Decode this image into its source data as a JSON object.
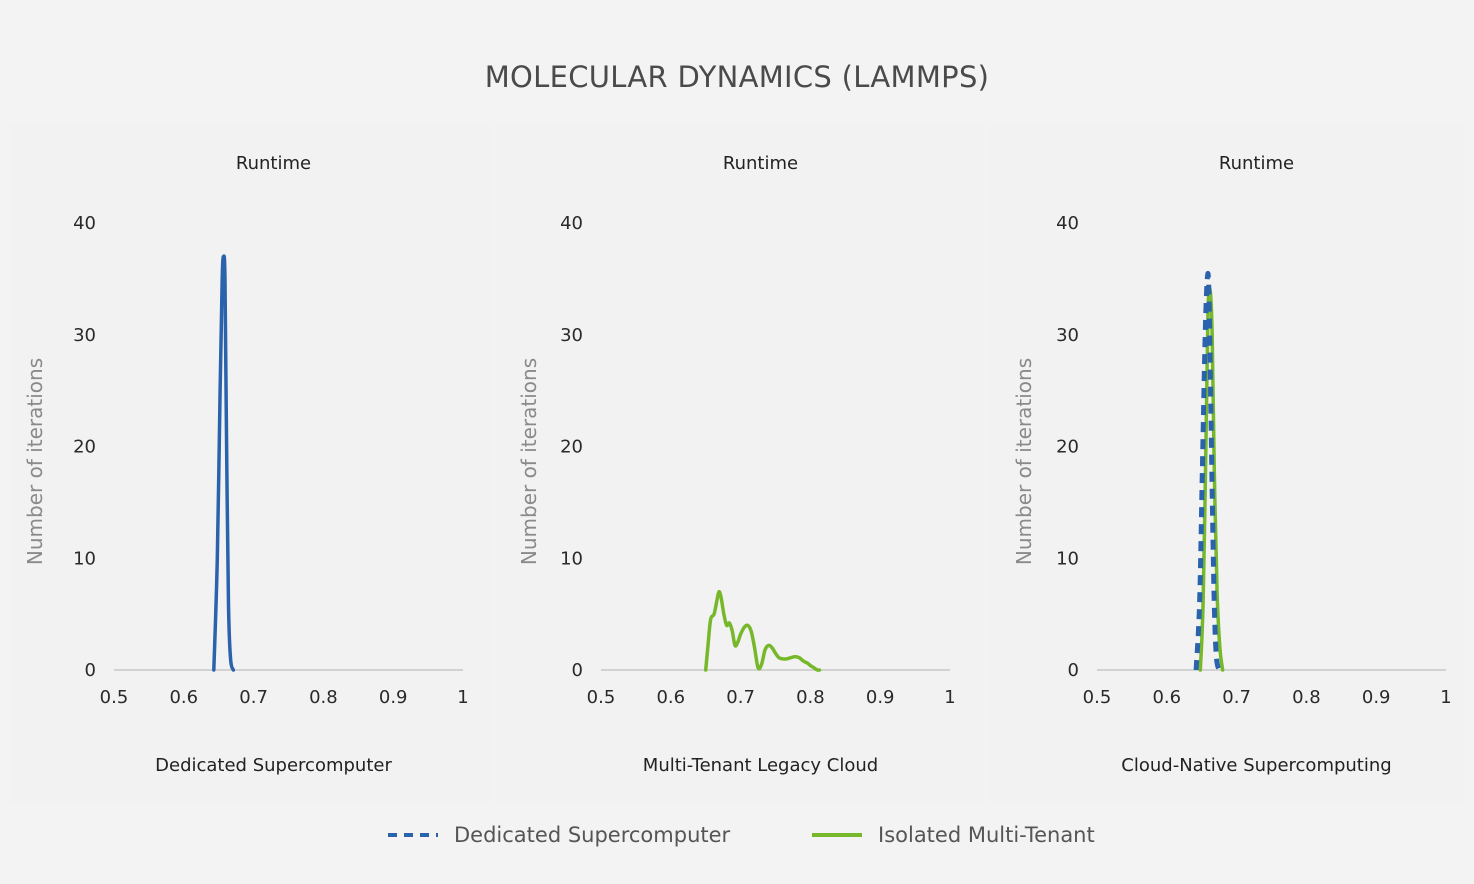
{
  "title": "MOLECULAR DYNAMICS (LAMMPS)",
  "legend": [
    {
      "label": "Dedicated Supercomputer",
      "color": "#2a62ac",
      "dash": true
    },
    {
      "label": "Isolated Multi-Tenant",
      "color": "#76b82a",
      "dash": false
    }
  ],
  "chart_data": [
    {
      "type": "line",
      "title": "Runtime",
      "xlabel": "Dedicated Supercomputer",
      "ylabel": "Number of iterations",
      "xlim": [
        0.5,
        1
      ],
      "ylim": [
        0,
        40
      ],
      "xticks": [
        "0.5",
        "0.6",
        "0.7",
        "0.8",
        "0.9",
        "1"
      ],
      "yticks": [
        "0",
        "10",
        "20",
        "30",
        "40"
      ],
      "grid": false,
      "series": [
        {
          "color": "#2a62ac",
          "dashed": false,
          "x": [
            0.643,
            0.648,
            0.652,
            0.655,
            0.657,
            0.659,
            0.661,
            0.664,
            0.667,
            0.671
          ],
          "y": [
            0,
            10,
            25,
            35,
            37,
            35,
            22,
            6,
            1,
            0
          ]
        }
      ]
    },
    {
      "type": "line",
      "title": "Runtime",
      "xlabel": "Multi-Tenant Legacy Cloud",
      "ylabel": "Number of iterations",
      "xlim": [
        0.5,
        1
      ],
      "ylim": [
        0,
        40
      ],
      "xticks": [
        "0.5",
        "0.6",
        "0.7",
        "0.8",
        "0.9",
        "1"
      ],
      "yticks": [
        "0",
        "10",
        "20",
        "30",
        "40"
      ],
      "grid": false,
      "series": [
        {
          "color": "#76b82a",
          "dashed": false,
          "x": [
            0.65,
            0.653,
            0.657,
            0.662,
            0.666,
            0.669,
            0.672,
            0.676,
            0.68,
            0.684,
            0.688,
            0.692,
            0.696,
            0.7,
            0.705,
            0.71,
            0.715,
            0.72,
            0.725,
            0.73,
            0.735,
            0.74,
            0.745,
            0.75,
            0.755,
            0.76,
            0.766,
            0.772,
            0.778,
            0.784,
            0.79,
            0.796,
            0.8,
            0.805,
            0.81,
            0.813
          ],
          "y": [
            0,
            2,
            4.5,
            5,
            6.2,
            7,
            6.5,
            5,
            4,
            4.2,
            3.5,
            2.2,
            2.5,
            3.2,
            3.8,
            4,
            3.5,
            2,
            0.2,
            0.5,
            1.8,
            2.2,
            2,
            1.5,
            1.1,
            1,
            1,
            1.1,
            1.2,
            1.1,
            0.8,
            0.6,
            0.4,
            0.2,
            0,
            0
          ]
        }
      ]
    },
    {
      "type": "line",
      "title": "Runtime",
      "xlabel": "Cloud-Native Supercomputing",
      "ylabel": "Number of iterations",
      "xlim": [
        0.5,
        1
      ],
      "ylim": [
        0,
        40
      ],
      "xticks": [
        "0.5",
        "0.6",
        "0.7",
        "0.8",
        "0.9",
        "1"
      ],
      "yticks": [
        "0",
        "10",
        "20",
        "30",
        "40"
      ],
      "grid": false,
      "series": [
        {
          "name": "Isolated Multi-Tenant",
          "color": "#76b82a",
          "dashed": false,
          "x": [
            0.648,
            0.652,
            0.656,
            0.659,
            0.662,
            0.665,
            0.668,
            0.672,
            0.676,
            0.68
          ],
          "y": [
            0,
            6,
            20,
            32,
            34,
            30,
            18,
            7,
            2,
            0
          ]
        },
        {
          "name": "Dedicated Supercomputer",
          "color": "#2a62ac",
          "dashed": true,
          "x": [
            0.642,
            0.647,
            0.651,
            0.655,
            0.658,
            0.66,
            0.662,
            0.665,
            0.668,
            0.671,
            0.675
          ],
          "y": [
            0,
            6,
            18,
            30,
            35,
            34.5,
            28,
            16,
            6,
            1.2,
            0
          ]
        }
      ]
    }
  ]
}
